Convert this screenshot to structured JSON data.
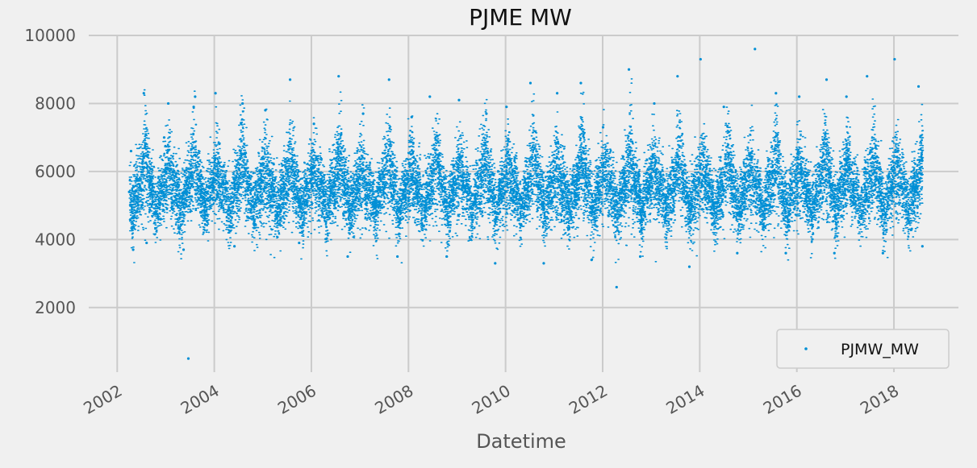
{
  "chart_data": {
    "type": "scatter",
    "title": "PJME MW",
    "xlabel": "Datetime",
    "ylabel": "",
    "grid": true,
    "legend_position": "bottom-right",
    "xlim": [
      "2001-06-01",
      "2019-05-01"
    ],
    "ylim": [
      100,
      10000
    ],
    "x_ticks": [
      "2002",
      "2004",
      "2006",
      "2008",
      "2010",
      "2012",
      "2014",
      "2016",
      "2018"
    ],
    "y_ticks": [
      2000,
      4000,
      6000,
      8000,
      10000
    ],
    "y_tick_labels": [
      "2000",
      "4000",
      "6000",
      "8000",
      "10000"
    ],
    "series": [
      {
        "name": "PJMW_MW",
        "color": "#008fd5",
        "x_range": [
          "2002-04-01",
          "2018-08-03"
        ],
        "marker": "dot",
        "sampled_points": [
          {
            "x": "2002-04-01",
            "y": 5400
          },
          {
            "x": "2002-04-15",
            "y": 6600
          },
          {
            "x": "2002-05-01",
            "y": 3700
          },
          {
            "x": "2002-07-20",
            "y": 8300
          },
          {
            "x": "2002-08-10",
            "y": 3900
          },
          {
            "x": "2002-12-20",
            "y": 7000
          },
          {
            "x": "2003-01-20",
            "y": 8000
          },
          {
            "x": "2003-05-15",
            "y": 3700
          },
          {
            "x": "2003-06-20",
            "y": 500
          },
          {
            "x": "2003-07-30",
            "y": 7900
          },
          {
            "x": "2003-08-10",
            "y": 8200
          },
          {
            "x": "2004-01-10",
            "y": 8300
          },
          {
            "x": "2004-06-01",
            "y": 3800
          },
          {
            "x": "2004-08-01",
            "y": 8000
          },
          {
            "x": "2005-01-20",
            "y": 7800
          },
          {
            "x": "2005-07-25",
            "y": 8700
          },
          {
            "x": "2005-10-01",
            "y": 3900
          },
          {
            "x": "2006-01-20",
            "y": 7400
          },
          {
            "x": "2006-07-25",
            "y": 8800
          },
          {
            "x": "2006-10-01",
            "y": 3500
          },
          {
            "x": "2007-01-25",
            "y": 7700
          },
          {
            "x": "2007-08-08",
            "y": 8700
          },
          {
            "x": "2007-10-10",
            "y": 3500
          },
          {
            "x": "2008-01-25",
            "y": 7600
          },
          {
            "x": "2008-06-10",
            "y": 8200
          },
          {
            "x": "2008-10-15",
            "y": 3500
          },
          {
            "x": "2009-01-16",
            "y": 8100
          },
          {
            "x": "2009-08-10",
            "y": 7700
          },
          {
            "x": "2009-10-15",
            "y": 3300
          },
          {
            "x": "2010-01-08",
            "y": 7900
          },
          {
            "x": "2010-07-07",
            "y": 8600
          },
          {
            "x": "2010-10-15",
            "y": 3300
          },
          {
            "x": "2011-01-24",
            "y": 8300
          },
          {
            "x": "2011-07-21",
            "y": 8600
          },
          {
            "x": "2011-10-10",
            "y": 3400
          },
          {
            "x": "2012-01-04",
            "y": 7300
          },
          {
            "x": "2012-04-15",
            "y": 2600
          },
          {
            "x": "2012-07-17",
            "y": 9000
          },
          {
            "x": "2012-10-10",
            "y": 3500
          },
          {
            "x": "2013-01-24",
            "y": 8000
          },
          {
            "x": "2013-07-18",
            "y": 8800
          },
          {
            "x": "2013-10-15",
            "y": 3200
          },
          {
            "x": "2014-01-07",
            "y": 9300
          },
          {
            "x": "2014-07-01",
            "y": 7900
          },
          {
            "x": "2014-10-10",
            "y": 3600
          },
          {
            "x": "2015-02-20",
            "y": 9600
          },
          {
            "x": "2015-07-28",
            "y": 8300
          },
          {
            "x": "2015-10-10",
            "y": 3600
          },
          {
            "x": "2016-01-19",
            "y": 8200
          },
          {
            "x": "2016-08-12",
            "y": 8700
          },
          {
            "x": "2016-10-10",
            "y": 3600
          },
          {
            "x": "2017-01-09",
            "y": 8200
          },
          {
            "x": "2017-06-13",
            "y": 8800
          },
          {
            "x": "2017-10-10",
            "y": 3600
          },
          {
            "x": "2018-01-06",
            "y": 9300
          },
          {
            "x": "2018-07-05",
            "y": 8500
          },
          {
            "x": "2018-08-03",
            "y": 3800
          }
        ]
      }
    ]
  }
}
